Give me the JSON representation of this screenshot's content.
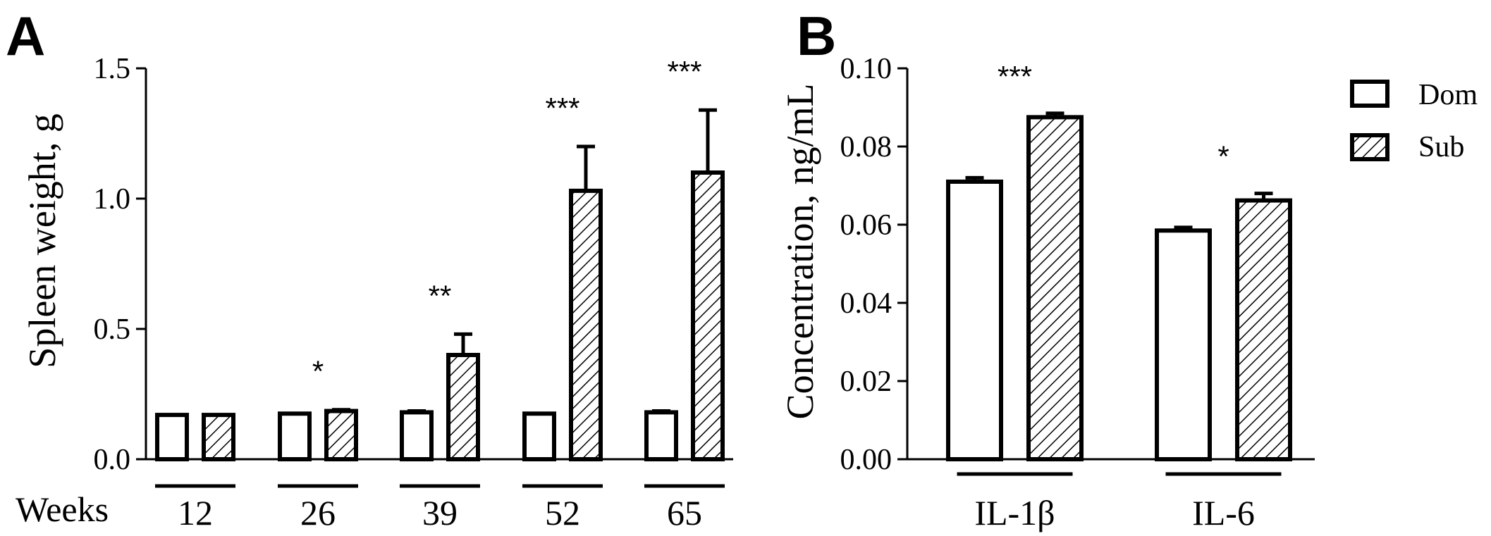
{
  "chart_data": [
    {
      "panel": "A",
      "type": "bar",
      "ylabel": "Spleen weight, g",
      "xlabel": "Weeks",
      "categories": [
        "12",
        "26",
        "39",
        "52",
        "65"
      ],
      "ylim": [
        0,
        1.5
      ],
      "yticks": [
        "0.0",
        "0.5",
        "1.0",
        "1.5"
      ],
      "series": [
        {
          "name": "Dom",
          "values": [
            0.17,
            0.175,
            0.18,
            0.175,
            0.18
          ],
          "errors": [
            0.0,
            0.0,
            0.005,
            0.0,
            0.005
          ]
        },
        {
          "name": "Sub",
          "values": [
            0.17,
            0.185,
            0.4,
            1.03,
            1.1
          ],
          "errors": [
            0.0,
            0.005,
            0.08,
            0.17,
            0.24
          ]
        }
      ],
      "significance": [
        "",
        "*",
        "**",
        "***",
        "***"
      ]
    },
    {
      "panel": "B",
      "type": "bar",
      "ylabel": "Concentration, ng/mL",
      "categories": [
        "IL-1β",
        "IL-6"
      ],
      "ylim": [
        0,
        0.1
      ],
      "yticks": [
        "0.00",
        "0.02",
        "0.04",
        "0.06",
        "0.08",
        "0.10"
      ],
      "series": [
        {
          "name": "Dom",
          "values": [
            0.071,
            0.0585
          ],
          "errors": [
            0.001,
            0.0008
          ]
        },
        {
          "name": "Sub",
          "values": [
            0.0875,
            0.0662
          ],
          "errors": [
            0.001,
            0.0018
          ]
        }
      ],
      "significance": [
        "***",
        "*"
      ],
      "legend": {
        "placement": "top-right",
        "entries": [
          "Dom",
          "Sub"
        ]
      }
    }
  ]
}
